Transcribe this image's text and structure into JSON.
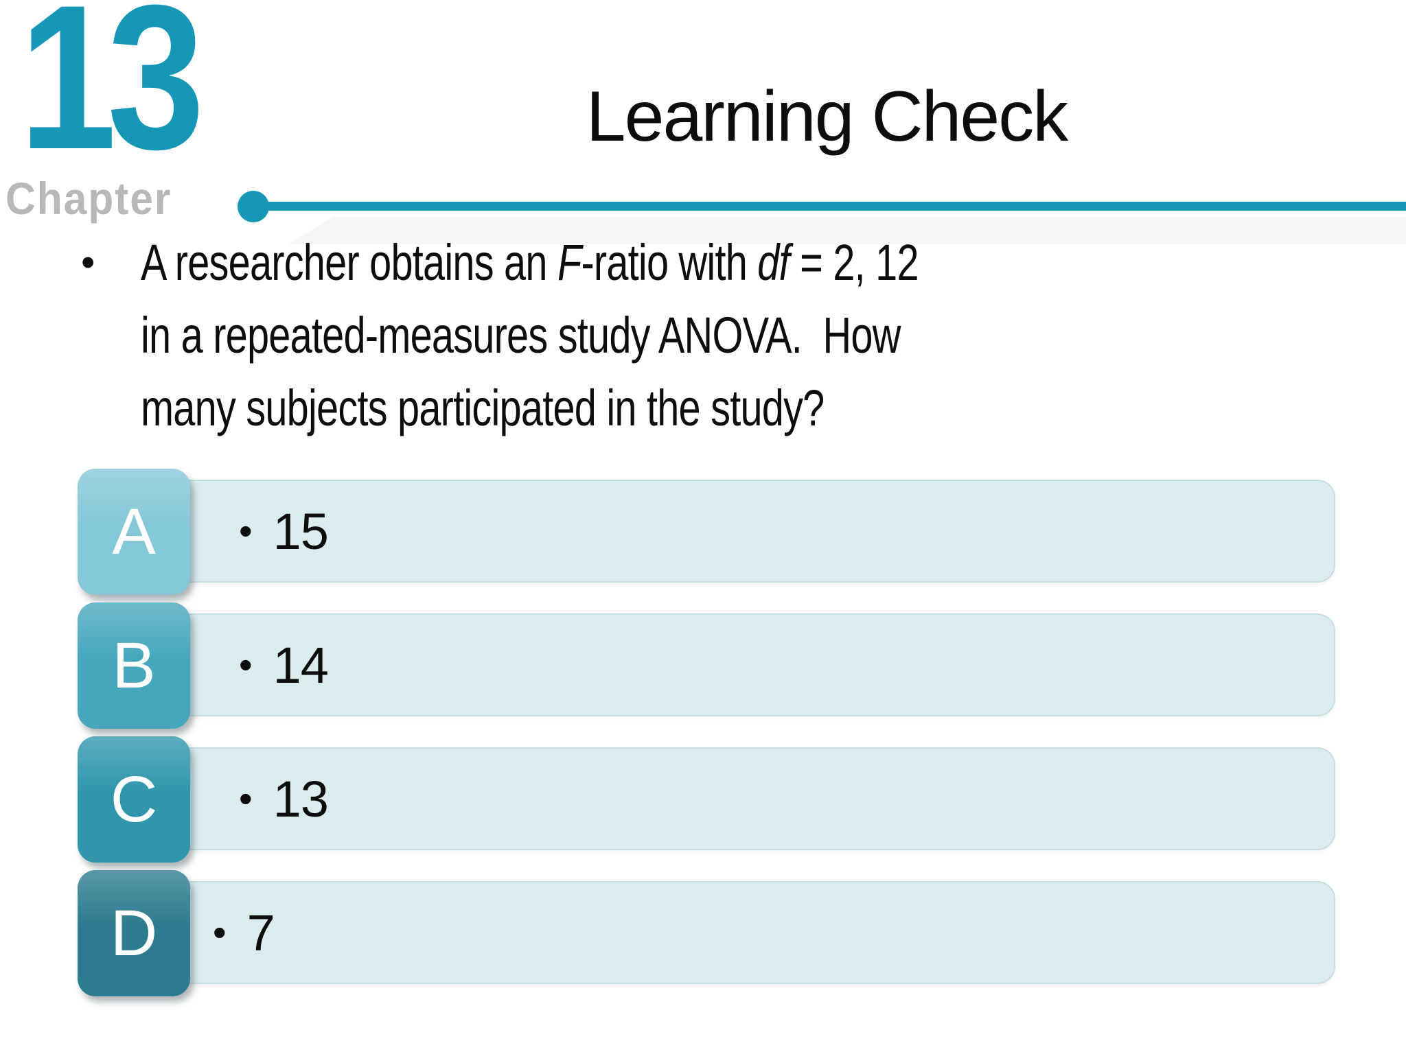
{
  "slide": {
    "chapter_number": "13",
    "chapter_label": "Chapter",
    "title": "Learning Check"
  },
  "question": {
    "bullet": "•",
    "line1_pre": "A researcher obtains an ",
    "line1_italic1": "F",
    "line1_mid": "-ratio with ",
    "line1_italic2": "df",
    "line1_post": " = 2, 12",
    "line2": "in a repeated-measures study ANOVA.  How",
    "line3": "many subjects participated in the study?"
  },
  "answers": [
    {
      "letter": "A",
      "bullet": "•",
      "text": "15"
    },
    {
      "letter": "B",
      "bullet": "•",
      "text": "14"
    },
    {
      "letter": "C",
      "bullet": "•",
      "text": "13"
    },
    {
      "letter": "D",
      "bullet": "•",
      "text": "7"
    }
  ],
  "colors": {
    "accent": "#1697b5",
    "chapter_label": "#b8b8b8",
    "text": "#0d0d0d",
    "answer_bar_bg": "#dbecef",
    "answer_bar_border": "#c5dee3",
    "badge_a": "#84c7d7",
    "badge_b": "#46a7bc",
    "badge_c": "#2f96ac",
    "badge_d": "#2c7b8e"
  }
}
